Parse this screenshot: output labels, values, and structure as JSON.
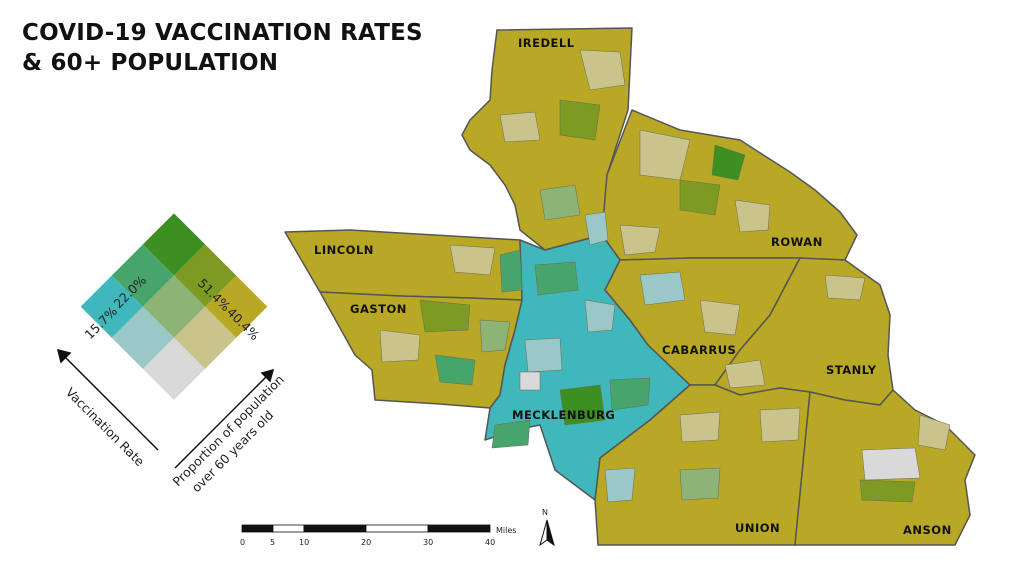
{
  "title": {
    "line1": "COVID-19 VACCINATION RATES",
    "line2": "& 60+ POPULATION"
  },
  "counties": [
    {
      "id": "iredell",
      "label": "IREDELL"
    },
    {
      "id": "rowan",
      "label": "ROWAN"
    },
    {
      "id": "lincoln",
      "label": "LINCOLN"
    },
    {
      "id": "gaston",
      "label": "GASTON"
    },
    {
      "id": "cabarrus",
      "label": "CABARRUS"
    },
    {
      "id": "stanly",
      "label": "STANLY"
    },
    {
      "id": "mecklenburg",
      "label": "MECKLENBURG"
    },
    {
      "id": "union",
      "label": "UNION"
    },
    {
      "id": "anson",
      "label": "ANSON"
    }
  ],
  "legend": {
    "vaccination_axis_label": "Vaccination Rate",
    "population_axis_label_line1": "Proportion of population",
    "population_axis_label_line2": "over 60 years old",
    "vaccination_breaks": [
      "15.7%",
      "22.0%"
    ],
    "population_breaks": [
      "51.4%",
      "40.4%"
    ],
    "colors": {
      "low_low": "#d9d9d9",
      "low_mid": "#c9c38c",
      "low_high": "#b8a825",
      "mid_low": "#9ac8c6",
      "mid_mid": "#8db376",
      "mid_high": "#7d9a22",
      "high_low": "#3fb7bb",
      "high_mid": "#47a46a",
      "high_high": "#3d8f21"
    }
  },
  "scale_bar": {
    "unit": "Miles",
    "ticks": [
      "0",
      "5",
      "10",
      "20",
      "30",
      "40"
    ]
  },
  "north_arrow": {
    "label": "N"
  }
}
